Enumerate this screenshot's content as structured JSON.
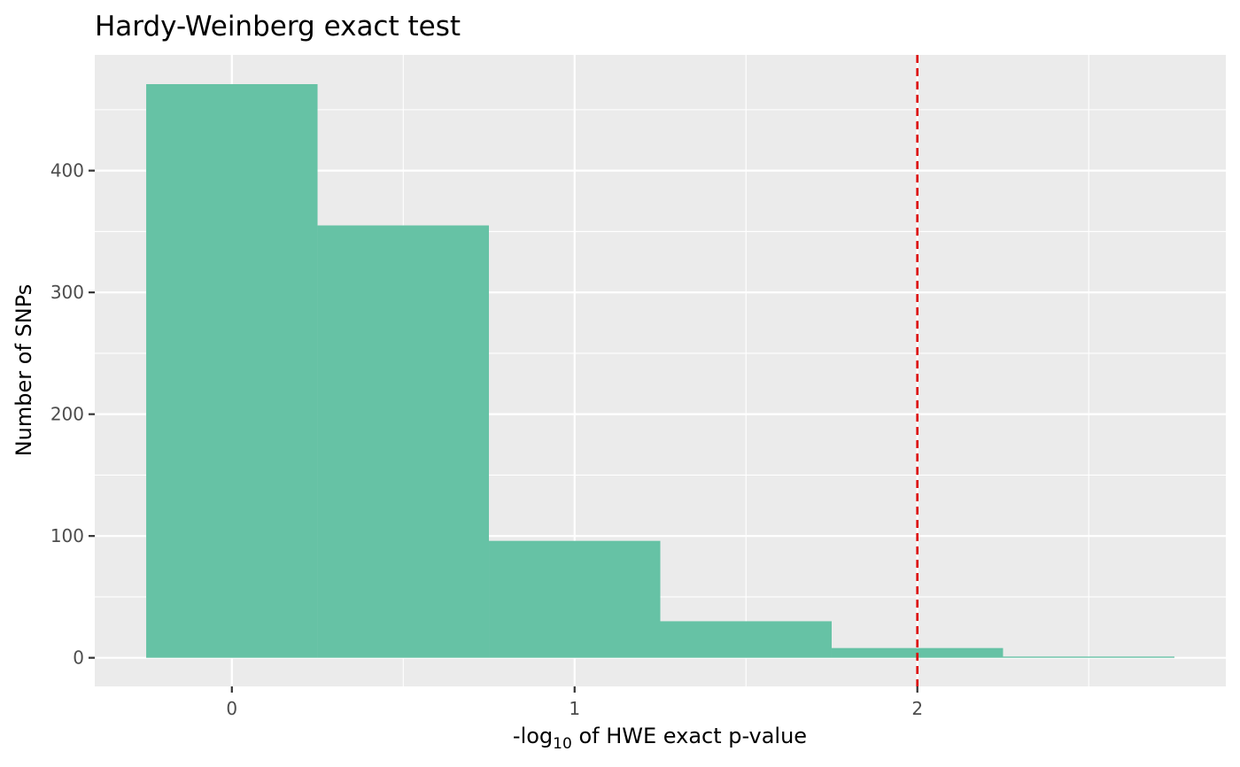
{
  "chart_data": {
    "type": "bar",
    "title": "Hardy-Weinberg exact test",
    "xlabel_prefix": "-log",
    "xlabel_sub": "10",
    "xlabel_suffix": " of HWE exact p-value",
    "ylabel": "Number of SNPs",
    "bins": [
      {
        "x0": -0.25,
        "x1": 0.25,
        "count": 471
      },
      {
        "x0": 0.25,
        "x1": 0.75,
        "count": 355
      },
      {
        "x0": 0.75,
        "x1": 1.25,
        "count": 96
      },
      {
        "x0": 1.25,
        "x1": 1.75,
        "count": 30
      },
      {
        "x0": 1.75,
        "x1": 2.25,
        "count": 8
      },
      {
        "x0": 2.25,
        "x1": 2.75,
        "count": 1
      }
    ],
    "xlim": [
      -0.4,
      2.9
    ],
    "ylim": [
      -23.5,
      495
    ],
    "xticks": [
      0,
      1,
      2
    ],
    "xtick_labels": [
      "0",
      "1",
      "2"
    ],
    "yticks": [
      0,
      100,
      200,
      300,
      400
    ],
    "ytick_labels": [
      "0",
      "100",
      "200",
      "300",
      "400"
    ],
    "threshold_line": {
      "x": 2,
      "style": "dashed"
    },
    "grid": true,
    "colors": {
      "bar_fill": "#66c2a5",
      "panel_bg": "#ebebeb",
      "grid": "#ffffff",
      "threshold": "#dd0000"
    }
  }
}
